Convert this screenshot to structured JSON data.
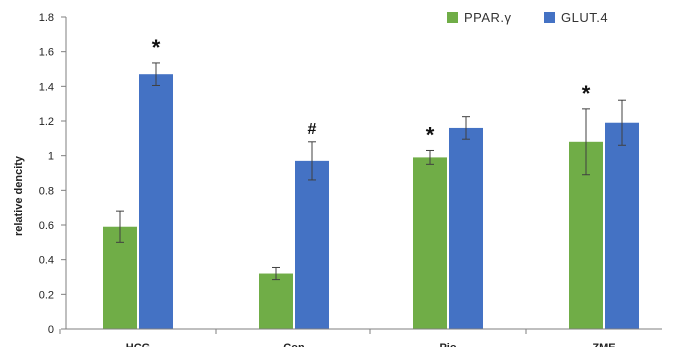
{
  "chart_data": {
    "type": "bar",
    "ylabel": "relative dencity",
    "xlabel": "",
    "ylim": [
      0,
      1.8
    ],
    "yticks": [
      "0",
      "0.2",
      "0.4",
      "0.6",
      "0.8",
      "1",
      "1.2",
      "1.4",
      "1.6",
      "1.8"
    ],
    "categories": [
      "HCG",
      "Con",
      "Pio",
      "ZME"
    ],
    "grid": false,
    "legend_position": "top-right",
    "series": [
      {
        "name": "PPAR.γ",
        "color": "#70ad47",
        "values": [
          0.59,
          0.32,
          0.99,
          1.08
        ],
        "errors": [
          0.09,
          0.035,
          0.04,
          0.19
        ],
        "annotations": [
          "",
          "",
          "*",
          "*"
        ]
      },
      {
        "name": "GLUT.4",
        "color": "#4472c4",
        "values": [
          1.47,
          0.97,
          1.16,
          1.19
        ],
        "errors": [
          0.065,
          0.11,
          0.065,
          0.13
        ],
        "annotations": [
          "*",
          "#",
          "",
          ""
        ]
      }
    ]
  }
}
